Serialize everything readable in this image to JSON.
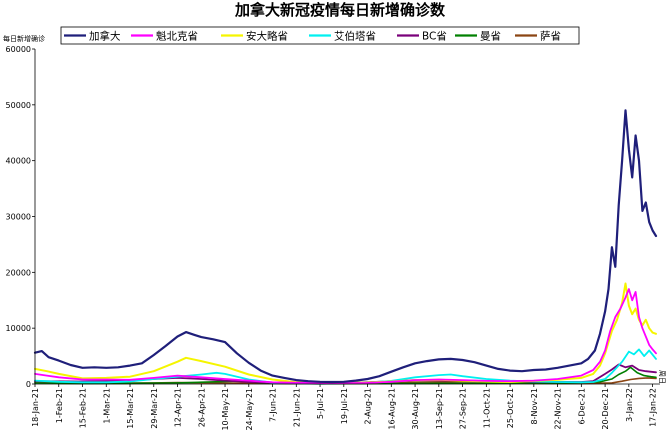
{
  "chart_data": {
    "type": "line",
    "title": "加拿大新冠疫情每日新增确诊数",
    "ylabel": "每日新增确诊",
    "xlabel": "",
    "ylim": [
      0,
      60000
    ],
    "yticks": [
      0,
      10000,
      20000,
      30000,
      40000,
      50000,
      60000
    ],
    "x_range": [
      "2021-01-18",
      "2022-01-19"
    ],
    "x_tick_labels": [
      "18-Jan-21",
      "1-Feb-21",
      "15-Feb-21",
      "1-Mar-21",
      "15-Mar-21",
      "29-Mar-21",
      "12-Apr-21",
      "26-Apr-21",
      "10-May-21",
      "24-May-21",
      "7-Jun-21",
      "21-Jun-21",
      "5-Jul-21",
      "19-Jul-21",
      "2-Aug-21",
      "16-Aug-21",
      "30-Aug-21",
      "13-Sep-21",
      "27-Sep-21",
      "11-Oct-21",
      "25-Oct-21",
      "8-Nov-21",
      "22-Nov-21",
      "6-Dec-21",
      "20-Dec-21",
      "3-Jan-22",
      "17-Jan-22"
    ],
    "grid": false,
    "legend_position": "top",
    "end_annotation": "周日",
    "series": [
      {
        "name": "加拿大",
        "color": "#1f1f7a",
        "width": 2.2,
        "points": [
          [
            "2021-01-18",
            5600
          ],
          [
            "2021-01-22",
            5900
          ],
          [
            "2021-01-26",
            4800
          ],
          [
            "2021-02-01",
            4200
          ],
          [
            "2021-02-08",
            3400
          ],
          [
            "2021-02-15",
            2900
          ],
          [
            "2021-02-22",
            3000
          ],
          [
            "2021-03-01",
            2900
          ],
          [
            "2021-03-08",
            3000
          ],
          [
            "2021-03-15",
            3300
          ],
          [
            "2021-03-22",
            3700
          ],
          [
            "2021-03-29",
            5200
          ],
          [
            "2021-04-05",
            6800
          ],
          [
            "2021-04-12",
            8500
          ],
          [
            "2021-04-17",
            9300
          ],
          [
            "2021-04-22",
            8800
          ],
          [
            "2021-04-26",
            8400
          ],
          [
            "2021-05-03",
            8000
          ],
          [
            "2021-05-10",
            7500
          ],
          [
            "2021-05-17",
            5500
          ],
          [
            "2021-05-24",
            3800
          ],
          [
            "2021-05-31",
            2400
          ],
          [
            "2021-06-07",
            1500
          ],
          [
            "2021-06-14",
            1100
          ],
          [
            "2021-06-21",
            700
          ],
          [
            "2021-06-28",
            500
          ],
          [
            "2021-07-05",
            400
          ],
          [
            "2021-07-12",
            350
          ],
          [
            "2021-07-19",
            400
          ],
          [
            "2021-07-26",
            600
          ],
          [
            "2021-08-02",
            900
          ],
          [
            "2021-08-09",
            1400
          ],
          [
            "2021-08-16",
            2200
          ],
          [
            "2021-08-23",
            3000
          ],
          [
            "2021-08-30",
            3700
          ],
          [
            "2021-09-06",
            4100
          ],
          [
            "2021-09-13",
            4400
          ],
          [
            "2021-09-20",
            4500
          ],
          [
            "2021-09-27",
            4300
          ],
          [
            "2021-10-04",
            3900
          ],
          [
            "2021-10-11",
            3300
          ],
          [
            "2021-10-18",
            2700
          ],
          [
            "2021-10-25",
            2400
          ],
          [
            "2021-11-01",
            2300
          ],
          [
            "2021-11-08",
            2500
          ],
          [
            "2021-11-15",
            2600
          ],
          [
            "2021-11-22",
            2900
          ],
          [
            "2021-11-29",
            3300
          ],
          [
            "2021-12-06",
            3700
          ],
          [
            "2021-12-10",
            4500
          ],
          [
            "2021-12-14",
            6000
          ],
          [
            "2021-12-17",
            9000
          ],
          [
            "2021-12-20",
            13000
          ],
          [
            "2021-12-22",
            17000
          ],
          [
            "2021-12-24",
            24500
          ],
          [
            "2021-12-26",
            21000
          ],
          [
            "2021-12-28",
            32000
          ],
          [
            "2021-12-30",
            40000
          ],
          [
            "2022-01-01",
            49000
          ],
          [
            "2022-01-03",
            42000
          ],
          [
            "2022-01-05",
            37000
          ],
          [
            "2022-01-07",
            44500
          ],
          [
            "2022-01-09",
            40000
          ],
          [
            "2022-01-11",
            31000
          ],
          [
            "2022-01-13",
            32500
          ],
          [
            "2022-01-15",
            29000
          ],
          [
            "2022-01-17",
            27500
          ],
          [
            "2022-01-19",
            26500
          ]
        ]
      },
      {
        "name": "魁北克省",
        "color": "#ff00ff",
        "width": 1.8,
        "points": [
          [
            "2021-01-18",
            1800
          ],
          [
            "2021-01-25",
            1500
          ],
          [
            "2021-02-01",
            1200
          ],
          [
            "2021-02-15",
            800
          ],
          [
            "2021-03-01",
            800
          ],
          [
            "2021-03-15",
            750
          ],
          [
            "2021-03-29",
            1100
          ],
          [
            "2021-04-12",
            1500
          ],
          [
            "2021-04-26",
            1200
          ],
          [
            "2021-05-10",
            900
          ],
          [
            "2021-05-24",
            600
          ],
          [
            "2021-06-07",
            300
          ],
          [
            "2021-07-05",
            150
          ],
          [
            "2021-08-02",
            200
          ],
          [
            "2021-08-16",
            400
          ],
          [
            "2021-08-30",
            700
          ],
          [
            "2021-09-13",
            800
          ],
          [
            "2021-09-27",
            700
          ],
          [
            "2021-10-11",
            550
          ],
          [
            "2021-10-25",
            500
          ],
          [
            "2021-11-08",
            600
          ],
          [
            "2021-11-22",
            900
          ],
          [
            "2021-12-06",
            1500
          ],
          [
            "2021-12-13",
            2500
          ],
          [
            "2021-12-17",
            4000
          ],
          [
            "2021-12-20",
            6000
          ],
          [
            "2021-12-23",
            9500
          ],
          [
            "2021-12-26",
            12000
          ],
          [
            "2021-12-29",
            13500
          ],
          [
            "2022-01-01",
            15500
          ],
          [
            "2022-01-03",
            17000
          ],
          [
            "2022-01-05",
            15000
          ],
          [
            "2022-01-07",
            16500
          ],
          [
            "2022-01-09",
            12000
          ],
          [
            "2022-01-11",
            10000
          ],
          [
            "2022-01-13",
            8500
          ],
          [
            "2022-01-15",
            7000
          ],
          [
            "2022-01-17",
            6200
          ],
          [
            "2022-01-19",
            5500
          ]
        ]
      },
      {
        "name": "安大略省",
        "color": "#f5f500",
        "width": 2.0,
        "points": [
          [
            "2021-01-18",
            2700
          ],
          [
            "2021-01-25",
            2300
          ],
          [
            "2021-02-01",
            1800
          ],
          [
            "2021-02-15",
            1000
          ],
          [
            "2021-03-01",
            1100
          ],
          [
            "2021-03-15",
            1300
          ],
          [
            "2021-03-29",
            2300
          ],
          [
            "2021-04-12",
            4000
          ],
          [
            "2021-04-17",
            4700
          ],
          [
            "2021-04-26",
            4100
          ],
          [
            "2021-05-10",
            3100
          ],
          [
            "2021-05-24",
            1700
          ],
          [
            "2021-06-07",
            800
          ],
          [
            "2021-06-21",
            300
          ],
          [
            "2021-07-05",
            180
          ],
          [
            "2021-08-02",
            250
          ],
          [
            "2021-08-16",
            450
          ],
          [
            "2021-08-30",
            700
          ],
          [
            "2021-09-13",
            750
          ],
          [
            "2021-09-27",
            600
          ],
          [
            "2021-10-11",
            450
          ],
          [
            "2021-10-25",
            350
          ],
          [
            "2021-11-08",
            550
          ],
          [
            "2021-11-22",
            750
          ],
          [
            "2021-12-06",
            1100
          ],
          [
            "2021-12-13",
            1800
          ],
          [
            "2021-12-17",
            3300
          ],
          [
            "2021-12-20",
            5500
          ],
          [
            "2021-12-24",
            9500
          ],
          [
            "2021-12-27",
            11500
          ],
          [
            "2021-12-30",
            14500
          ],
          [
            "2022-01-01",
            18000
          ],
          [
            "2022-01-03",
            14000
          ],
          [
            "2022-01-05",
            12500
          ],
          [
            "2022-01-07",
            13500
          ],
          [
            "2022-01-09",
            11500
          ],
          [
            "2022-01-11",
            10500
          ],
          [
            "2022-01-13",
            11500
          ],
          [
            "2022-01-15",
            10000
          ],
          [
            "2022-01-17",
            9200
          ],
          [
            "2022-01-19",
            9000
          ]
        ]
      },
      {
        "name": "艾伯塔省",
        "color": "#00f0f0",
        "width": 1.8,
        "points": [
          [
            "2021-01-18",
            600
          ],
          [
            "2021-02-01",
            400
          ],
          [
            "2021-02-15",
            300
          ],
          [
            "2021-03-01",
            300
          ],
          [
            "2021-03-15",
            450
          ],
          [
            "2021-03-29",
            900
          ],
          [
            "2021-04-12",
            1300
          ],
          [
            "2021-04-26",
            1700
          ],
          [
            "2021-05-05",
            2000
          ],
          [
            "2021-05-10",
            1800
          ],
          [
            "2021-05-24",
            800
          ],
          [
            "2021-06-07",
            250
          ],
          [
            "2021-07-05",
            50
          ],
          [
            "2021-08-02",
            250
          ],
          [
            "2021-08-16",
            550
          ],
          [
            "2021-08-30",
            1200
          ],
          [
            "2021-09-13",
            1600
          ],
          [
            "2021-09-20",
            1700
          ],
          [
            "2021-09-27",
            1400
          ],
          [
            "2021-10-11",
            900
          ],
          [
            "2021-10-25",
            600
          ],
          [
            "2021-11-08",
            450
          ],
          [
            "2021-11-22",
            350
          ],
          [
            "2021-12-06",
            300
          ],
          [
            "2021-12-13",
            350
          ],
          [
            "2021-12-20",
            900
          ],
          [
            "2021-12-24",
            2000
          ],
          [
            "2021-12-27",
            3000
          ],
          [
            "2021-12-30",
            4000
          ],
          [
            "2022-01-03",
            5800
          ],
          [
            "2022-01-06",
            5300
          ],
          [
            "2022-01-09",
            6200
          ],
          [
            "2022-01-12",
            5000
          ],
          [
            "2022-01-15",
            6000
          ],
          [
            "2022-01-19",
            4500
          ]
        ]
      },
      {
        "name": "BC省",
        "color": "#7a007a",
        "width": 1.8,
        "points": [
          [
            "2021-01-18",
            500
          ],
          [
            "2021-02-15",
            450
          ],
          [
            "2021-03-15",
            600
          ],
          [
            "2021-03-29",
            900
          ],
          [
            "2021-04-12",
            1100
          ],
          [
            "2021-04-26",
            900
          ],
          [
            "2021-05-10",
            600
          ],
          [
            "2021-05-24",
            350
          ],
          [
            "2021-06-21",
            100
          ],
          [
            "2021-07-19",
            150
          ],
          [
            "2021-08-16",
            500
          ],
          [
            "2021-08-30",
            700
          ],
          [
            "2021-09-13",
            650
          ],
          [
            "2021-10-11",
            550
          ],
          [
            "2021-11-08",
            400
          ],
          [
            "2021-12-06",
            350
          ],
          [
            "2021-12-13",
            500
          ],
          [
            "2021-12-20",
            1800
          ],
          [
            "2021-12-24",
            2600
          ],
          [
            "2021-12-28",
            3500
          ],
          [
            "2022-01-01",
            3000
          ],
          [
            "2022-01-05",
            3300
          ],
          [
            "2022-01-09",
            2500
          ],
          [
            "2022-01-13",
            2300
          ],
          [
            "2022-01-19",
            2100
          ]
        ]
      },
      {
        "name": "曼省",
        "color": "#008000",
        "width": 1.6,
        "points": [
          [
            "2021-01-18",
            200
          ],
          [
            "2021-02-15",
            80
          ],
          [
            "2021-04-12",
            200
          ],
          [
            "2021-05-17",
            500
          ],
          [
            "2021-06-07",
            150
          ],
          [
            "2021-07-05",
            40
          ],
          [
            "2021-09-13",
            120
          ],
          [
            "2021-11-22",
            150
          ],
          [
            "2021-12-17",
            400
          ],
          [
            "2021-12-24",
            900
          ],
          [
            "2021-12-28",
            1700
          ],
          [
            "2022-01-01",
            2300
          ],
          [
            "2022-01-04",
            3000
          ],
          [
            "2022-01-08",
            2000
          ],
          [
            "2022-01-12",
            1500
          ],
          [
            "2022-01-16",
            1300
          ],
          [
            "2022-01-19",
            1200
          ]
        ]
      },
      {
        "name": "萨省",
        "color": "#8b4513",
        "width": 1.6,
        "points": [
          [
            "2021-01-18",
            300
          ],
          [
            "2021-02-15",
            150
          ],
          [
            "2021-03-29",
            200
          ],
          [
            "2021-04-12",
            250
          ],
          [
            "2021-05-17",
            150
          ],
          [
            "2021-07-05",
            40
          ],
          [
            "2021-09-06",
            350
          ],
          [
            "2021-10-04",
            450
          ],
          [
            "2021-11-01",
            150
          ],
          [
            "2021-12-06",
            100
          ],
          [
            "2021-12-24",
            200
          ],
          [
            "2021-12-30",
            500
          ],
          [
            "2022-01-04",
            800
          ],
          [
            "2022-01-09",
            1000
          ],
          [
            "2022-01-14",
            1100
          ],
          [
            "2022-01-19",
            1000
          ]
        ]
      }
    ]
  }
}
